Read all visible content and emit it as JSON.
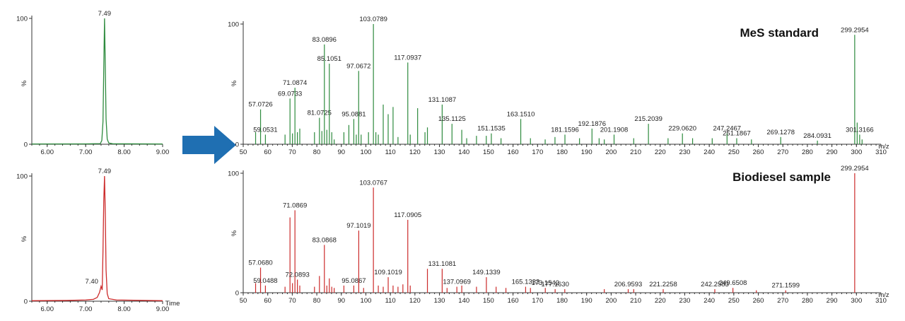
{
  "colors": {
    "standard": "#2e8b3e",
    "sample": "#cc2b2b",
    "axis": "#333333",
    "arrow": "#1f6fb2"
  },
  "arrow_icon": "right-arrow",
  "chart_data": [
    {
      "type": "line",
      "id": "chrom-standard",
      "x_ticks": [
        "6.00",
        "7.00",
        "8.00",
        "9.00"
      ],
      "y_ticks": [
        "0",
        "100"
      ],
      "ylabel": "%",
      "xlabel": "",
      "xlim": [
        5.6,
        9.0
      ],
      "ylim": [
        0,
        100
      ],
      "series": [
        {
          "x": [
            5.6,
            7.0,
            7.38,
            7.42,
            7.45,
            7.47,
            7.49,
            7.51,
            7.53,
            7.56,
            7.6,
            7.7,
            9.0
          ],
          "values": [
            0.2,
            0.3,
            0.5,
            3,
            18,
            60,
            100,
            62,
            20,
            4,
            1,
            0.4,
            0.2
          ]
        }
      ],
      "annotations": [
        {
          "x": 7.49,
          "y": 100,
          "text": "7.49"
        }
      ]
    },
    {
      "type": "line",
      "id": "chrom-sample",
      "x_ticks": [
        "6.00",
        "7.00",
        "8.00",
        "9.00"
      ],
      "y_ticks": [
        "0",
        "100"
      ],
      "ylabel": "%",
      "xlabel": "Time",
      "xlim": [
        5.6,
        9.0
      ],
      "ylim": [
        0,
        100
      ],
      "series": [
        {
          "x": [
            5.6,
            6.5,
            7.0,
            7.2,
            7.3,
            7.36,
            7.4,
            7.43,
            7.45,
            7.47,
            7.49,
            7.51,
            7.53,
            7.56,
            7.6,
            7.8,
            9.0
          ],
          "values": [
            0.4,
            0.6,
            1,
            1.5,
            3,
            7,
            12,
            9,
            40,
            80,
            100,
            70,
            25,
            6,
            2,
            1,
            0.4
          ]
        }
      ],
      "annotations": [
        {
          "x": 7.49,
          "y": 100,
          "text": "7.49"
        },
        {
          "x": 7.4,
          "y": 12,
          "text": "7.40"
        }
      ]
    },
    {
      "type": "bar",
      "id": "ms-standard",
      "title": "MeS standard",
      "xlabel": "m/z",
      "ylabel": "%",
      "xlim": [
        50,
        310
      ],
      "ylim": [
        0,
        100
      ],
      "x_ticks": [
        "50",
        "60",
        "70",
        "80",
        "90",
        "100",
        "110",
        "120",
        "130",
        "140",
        "150",
        "160",
        "170",
        "180",
        "190",
        "200",
        "210",
        "220",
        "230",
        "240",
        "250",
        "260",
        "270",
        "280",
        "290",
        "300",
        "310"
      ],
      "y_ticks": [
        "0",
        "100"
      ],
      "peaks": [
        {
          "x": 55.05,
          "y": 10
        },
        {
          "x": 57.0726,
          "y": 29,
          "label": "57.0726"
        },
        {
          "x": 59.0531,
          "y": 8,
          "label": "59.0531"
        },
        {
          "x": 67.05,
          "y": 8
        },
        {
          "x": 69.0733,
          "y": 38,
          "label": "69.0733"
        },
        {
          "x": 70.07,
          "y": 9
        },
        {
          "x": 71.0874,
          "y": 47,
          "label": "71.0874"
        },
        {
          "x": 72.08,
          "y": 10
        },
        {
          "x": 73.06,
          "y": 13
        },
        {
          "x": 79.05,
          "y": 10
        },
        {
          "x": 81.0725,
          "y": 22,
          "label": "81.0725"
        },
        {
          "x": 82.07,
          "y": 11
        },
        {
          "x": 83.0896,
          "y": 83,
          "label": "83.0896"
        },
        {
          "x": 84.09,
          "y": 12
        },
        {
          "x": 85.1051,
          "y": 67,
          "label": "85.1051"
        },
        {
          "x": 86.1,
          "y": 10
        },
        {
          "x": 87.08,
          "y": 4
        },
        {
          "x": 91.05,
          "y": 10
        },
        {
          "x": 93.07,
          "y": 16
        },
        {
          "x": 95.0881,
          "y": 21,
          "label": "95.0881"
        },
        {
          "x": 96.09,
          "y": 8
        },
        {
          "x": 97.0672,
          "y": 61,
          "label": "97.0672"
        },
        {
          "x": 98.07,
          "y": 8
        },
        {
          "x": 101.07,
          "y": 10
        },
        {
          "x": 103.0789,
          "y": 100,
          "label": "103.0789"
        },
        {
          "x": 104.08,
          "y": 10
        },
        {
          "x": 105.07,
          "y": 8
        },
        {
          "x": 107.08,
          "y": 33
        },
        {
          "x": 109.09,
          "y": 25
        },
        {
          "x": 111.09,
          "y": 31
        },
        {
          "x": 113.1,
          "y": 6
        },
        {
          "x": 117.0937,
          "y": 68,
          "label": "117.0937"
        },
        {
          "x": 118.09,
          "y": 8
        },
        {
          "x": 121.1,
          "y": 30
        },
        {
          "x": 124.1,
          "y": 10
        },
        {
          "x": 125.1,
          "y": 14
        },
        {
          "x": 131.1087,
          "y": 33,
          "label": "131.1087"
        },
        {
          "x": 135.1125,
          "y": 17,
          "label": "135.1125"
        },
        {
          "x": 139.1,
          "y": 12
        },
        {
          "x": 141.1,
          "y": 5
        },
        {
          "x": 145.1,
          "y": 7
        },
        {
          "x": 149.1,
          "y": 7
        },
        {
          "x": 151.1535,
          "y": 9,
          "label": "151.1535"
        },
        {
          "x": 155.1,
          "y": 5
        },
        {
          "x": 163.151,
          "y": 21,
          "label": "163.1510"
        },
        {
          "x": 167.1,
          "y": 5
        },
        {
          "x": 173.1,
          "y": 4
        },
        {
          "x": 177.1,
          "y": 6
        },
        {
          "x": 181.1596,
          "y": 8,
          "label": "181.1596"
        },
        {
          "x": 187.1,
          "y": 5
        },
        {
          "x": 192.1876,
          "y": 13,
          "label": "192.1876"
        },
        {
          "x": 195.1,
          "y": 5
        },
        {
          "x": 197.2,
          "y": 4
        },
        {
          "x": 201.1908,
          "y": 8,
          "label": "201.1908"
        },
        {
          "x": 209.2,
          "y": 5
        },
        {
          "x": 215.2039,
          "y": 17,
          "label": "215.2039"
        },
        {
          "x": 223.2,
          "y": 5
        },
        {
          "x": 229.062,
          "y": 9,
          "label": "229.0620"
        },
        {
          "x": 233.2,
          "y": 5
        },
        {
          "x": 241.2,
          "y": 5
        },
        {
          "x": 247.2467,
          "y": 9,
          "label": "247.2467"
        },
        {
          "x": 251.1867,
          "y": 5,
          "label": "251.1867"
        },
        {
          "x": 257.2,
          "y": 4
        },
        {
          "x": 269.1278,
          "y": 6,
          "label": "269.1278"
        },
        {
          "x": 284.0931,
          "y": 3,
          "label": "284.0931"
        },
        {
          "x": 299.2954,
          "y": 91,
          "label": "299.2954"
        },
        {
          "x": 300.3,
          "y": 18
        },
        {
          "x": 301.3166,
          "y": 8,
          "label": "301.3166"
        },
        {
          "x": 302.3,
          "y": 4
        }
      ]
    },
    {
      "type": "bar",
      "id": "ms-sample",
      "title": "Biodiesel sample",
      "xlabel": "m/z",
      "ylabel": "%",
      "xlim": [
        50,
        310
      ],
      "ylim": [
        0,
        100
      ],
      "x_ticks": [
        "50",
        "60",
        "70",
        "80",
        "90",
        "100",
        "110",
        "120",
        "130",
        "140",
        "150",
        "160",
        "170",
        "180",
        "190",
        "200",
        "210",
        "220",
        "230",
        "240",
        "250",
        "260",
        "270",
        "280",
        "290",
        "300",
        "310"
      ],
      "y_ticks": [
        "0",
        "100"
      ],
      "peaks": [
        {
          "x": 55.05,
          "y": 8
        },
        {
          "x": 57.068,
          "y": 21,
          "label": "57.0680"
        },
        {
          "x": 59.0488,
          "y": 6,
          "label": "59.0488"
        },
        {
          "x": 67.05,
          "y": 5
        },
        {
          "x": 69.07,
          "y": 63
        },
        {
          "x": 70.07,
          "y": 8
        },
        {
          "x": 71.0869,
          "y": 69,
          "label": "71.0869"
        },
        {
          "x": 72.0893,
          "y": 11,
          "label": "72.0893"
        },
        {
          "x": 73.06,
          "y": 6
        },
        {
          "x": 79.05,
          "y": 5
        },
        {
          "x": 81.07,
          "y": 14
        },
        {
          "x": 83.0868,
          "y": 40,
          "label": "83.0868"
        },
        {
          "x": 84.09,
          "y": 6
        },
        {
          "x": 85.1,
          "y": 12
        },
        {
          "x": 86.1,
          "y": 5
        },
        {
          "x": 87.08,
          "y": 4
        },
        {
          "x": 91.05,
          "y": 6
        },
        {
          "x": 95.0867,
          "y": 6,
          "label": "95.0867"
        },
        {
          "x": 97.1019,
          "y": 52,
          "label": "97.1019"
        },
        {
          "x": 99.08,
          "y": 4
        },
        {
          "x": 103.0767,
          "y": 88,
          "label": "103.0767"
        },
        {
          "x": 105.07,
          "y": 6
        },
        {
          "x": 107.08,
          "y": 5
        },
        {
          "x": 109.1019,
          "y": 13,
          "label": "109.1019"
        },
        {
          "x": 111.09,
          "y": 6
        },
        {
          "x": 113.1,
          "y": 5
        },
        {
          "x": 115.1,
          "y": 7
        },
        {
          "x": 117.0905,
          "y": 61,
          "label": "117.0905"
        },
        {
          "x": 118.09,
          "y": 6
        },
        {
          "x": 125.1,
          "y": 20
        },
        {
          "x": 131.1081,
          "y": 20,
          "label": "131.1081"
        },
        {
          "x": 133.1,
          "y": 4
        },
        {
          "x": 137.0969,
          "y": 5,
          "label": "137.0969"
        },
        {
          "x": 139.1,
          "y": 6
        },
        {
          "x": 145.1,
          "y": 5
        },
        {
          "x": 149.1339,
          "y": 13,
          "label": "149.1339"
        },
        {
          "x": 153.1,
          "y": 5
        },
        {
          "x": 157.1,
          "y": 4
        },
        {
          "x": 165.1333,
          "y": 5,
          "label": "165.1333"
        },
        {
          "x": 167.1,
          "y": 4
        },
        {
          "x": 173.1542,
          "y": 4,
          "label": "173.1542"
        },
        {
          "x": 177.163,
          "y": 3,
          "label": "177.1630"
        },
        {
          "x": 181.1,
          "y": 3
        },
        {
          "x": 197.2,
          "y": 3
        },
        {
          "x": 206.9593,
          "y": 3,
          "label": "206.9593"
        },
        {
          "x": 209.2,
          "y": 3
        },
        {
          "x": 221.2258,
          "y": 3,
          "label": "221.2258"
        },
        {
          "x": 242.2583,
          "y": 3,
          "label": "242.2583"
        },
        {
          "x": 249.6508,
          "y": 4,
          "label": "249.6508"
        },
        {
          "x": 259.2,
          "y": 2
        },
        {
          "x": 271.1599,
          "y": 2,
          "label": "271.1599"
        },
        {
          "x": 299.2954,
          "y": 100,
          "label": "299.2954"
        }
      ]
    }
  ]
}
